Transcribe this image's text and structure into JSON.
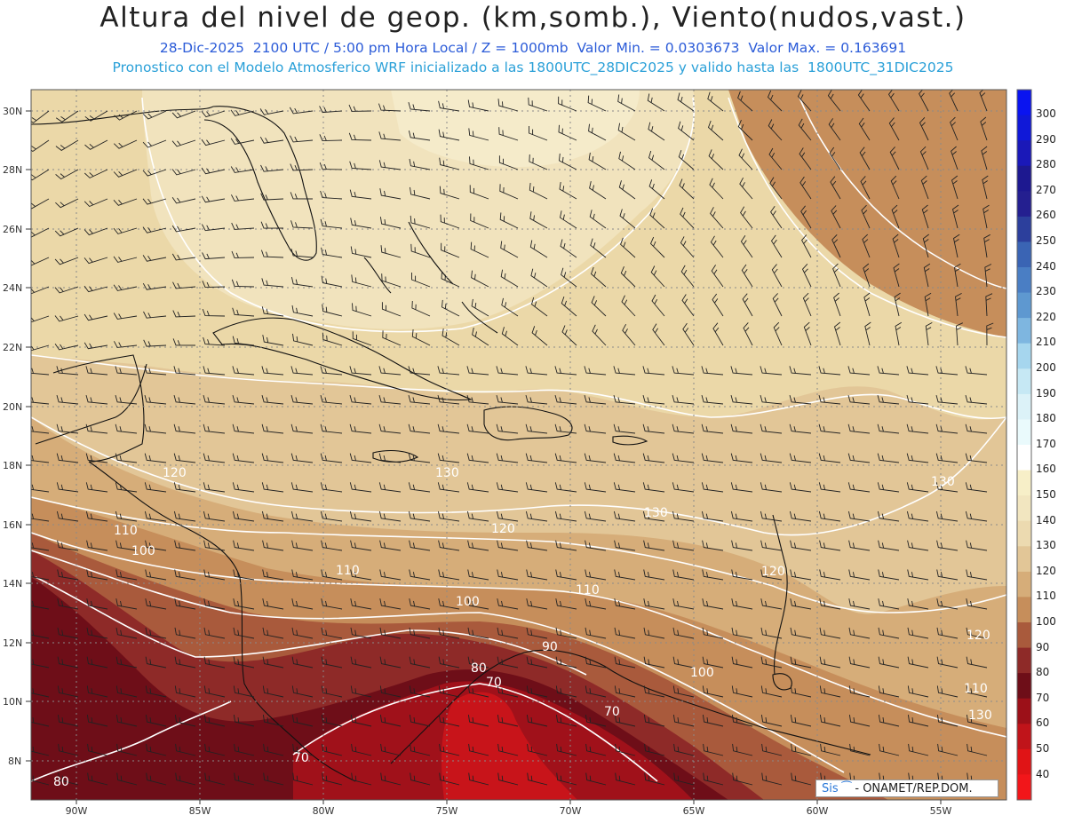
{
  "header": {
    "title": "Altura del nivel de geop. (km,somb.), Viento(nudos,vast.)",
    "subtitle1": "28-Dic-2025  2100 UTC / 5:00 pm Hora Local / Z = 1000mb  Valor Min. = 0.0303673  Valor Max. = 0.163691",
    "subtitle2": "Pronostico con el Modelo Atmosferico WRF inicializado a las 1800UTC_28DIC2025 y valido hasta las  1800UTC_31DIC2025"
  },
  "map": {
    "lat_labels": [
      "30N",
      "28N",
      "26N",
      "24N",
      "22N",
      "20N",
      "18N",
      "16N",
      "14N",
      "12N",
      "10N",
      "8N"
    ],
    "lon_labels": [
      "90W",
      "85W",
      "80W",
      "75W",
      "70W",
      "65W",
      "60W",
      "55W"
    ],
    "contour_labels": [
      "130",
      "130",
      "130",
      "130",
      "120",
      "120",
      "120",
      "120",
      "110",
      "110",
      "110",
      "110",
      "100",
      "100",
      "100",
      "90",
      "80",
      "70",
      "70",
      "70",
      "80"
    ],
    "grid": "dotted",
    "colors": {
      "c170": "#f8f1dc",
      "c160": "#f5ebca",
      "c150": "#f1e3bd",
      "c140": "#ebd8a8",
      "c130": "#e2c697",
      "c120": "#d6ad79",
      "c110": "#c68e5b",
      "c100": "#a95a3c",
      "c90": "#8e2a28",
      "c80": "#6e0e18",
      "c70": "#a0111a",
      "c60": "#c8141a"
    }
  },
  "colorbar": {
    "labels": [
      "300",
      "290",
      "280",
      "270",
      "260",
      "250",
      "240",
      "230",
      "220",
      "210",
      "200",
      "190",
      "180",
      "170",
      "160",
      "150",
      "140",
      "130",
      "120",
      "110",
      "100",
      "90",
      "80",
      "70",
      "60",
      "50",
      "40"
    ]
  },
  "credit": {
    "sis": "Sis",
    "org": "- ONAMET/REP.DOM."
  }
}
